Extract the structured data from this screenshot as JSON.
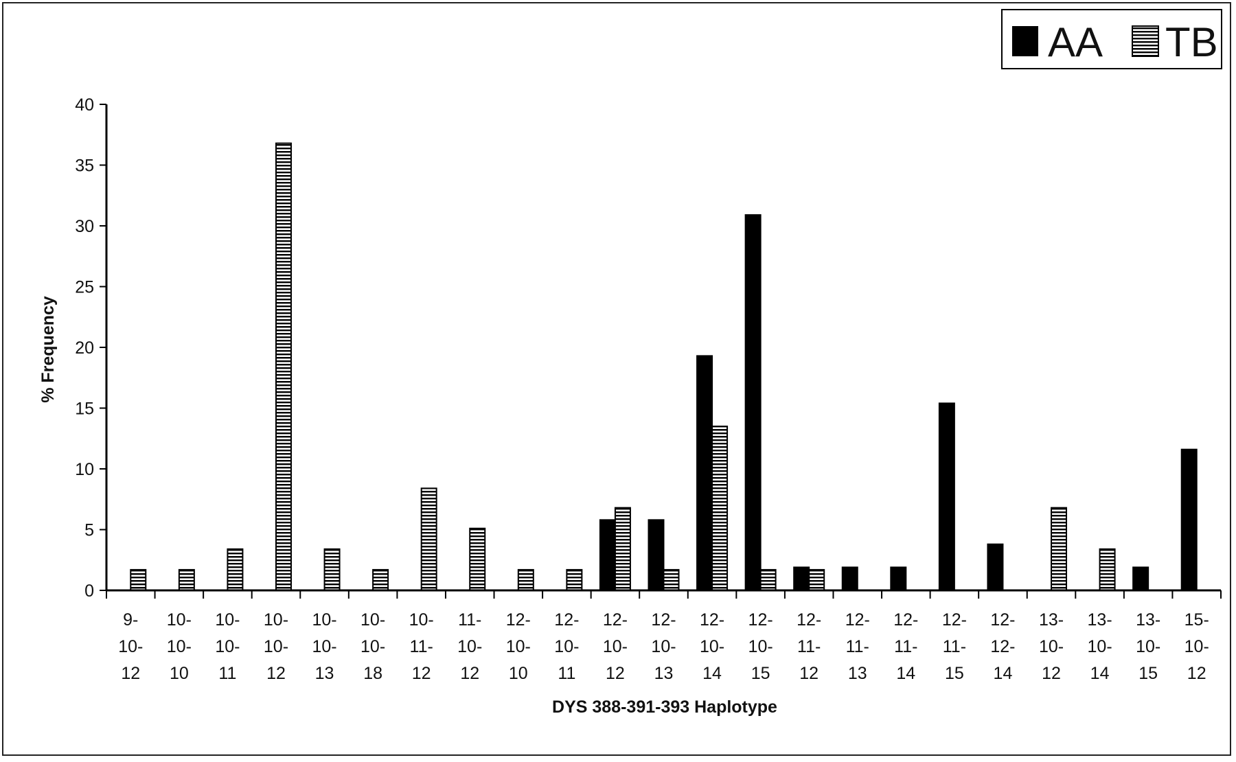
{
  "chart_data": {
    "type": "bar",
    "xlabel": "DYS 388-391-393 Haplotype",
    "ylabel": "% Frequency",
    "ylim": [
      0,
      40
    ],
    "yticks": [
      0,
      5,
      10,
      15,
      20,
      25,
      30,
      35,
      40
    ],
    "legend_position": "top-right",
    "categories": [
      [
        "9-",
        "10-",
        "12"
      ],
      [
        "10-",
        "10-",
        "10"
      ],
      [
        "10-",
        "10-",
        "11"
      ],
      [
        "10-",
        "10-",
        "12"
      ],
      [
        "10-",
        "10-",
        "13"
      ],
      [
        "10-",
        "10-",
        "18"
      ],
      [
        "10-",
        "11-",
        "12"
      ],
      [
        "11-",
        "10-",
        "12"
      ],
      [
        "12-",
        "10-",
        "10"
      ],
      [
        "12-",
        "10-",
        "11"
      ],
      [
        "12-",
        "10-",
        "12"
      ],
      [
        "12-",
        "10-",
        "13"
      ],
      [
        "12-",
        "10-",
        "14"
      ],
      [
        "12-",
        "10-",
        "15"
      ],
      [
        "12-",
        "11-",
        "12"
      ],
      [
        "12-",
        "11-",
        "13"
      ],
      [
        "12-",
        "11-",
        "14"
      ],
      [
        "12-",
        "11-",
        "15"
      ],
      [
        "12-",
        "12-",
        "14"
      ],
      [
        "13-",
        "10-",
        "12"
      ],
      [
        "13-",
        "10-",
        "14"
      ],
      [
        "13-",
        "10-",
        "15"
      ],
      [
        "15-",
        "10-",
        "12"
      ]
    ],
    "series": [
      {
        "name": "AA",
        "fill": "solid",
        "color": "#000000",
        "values": [
          0,
          0,
          0,
          0,
          0,
          0,
          0,
          0,
          0,
          0,
          5.8,
          5.8,
          19.3,
          30.9,
          1.9,
          1.9,
          1.9,
          15.4,
          3.8,
          0,
          0,
          1.9,
          11.6
        ]
      },
      {
        "name": "TB",
        "fill": "horizontal-stripes",
        "color": "#000000",
        "values": [
          1.7,
          1.7,
          3.4,
          36.8,
          3.4,
          1.7,
          8.4,
          5.1,
          1.7,
          1.7,
          6.8,
          1.7,
          13.5,
          1.7,
          1.7,
          0,
          0,
          0,
          0,
          6.8,
          3.4,
          0,
          0
        ]
      }
    ]
  }
}
